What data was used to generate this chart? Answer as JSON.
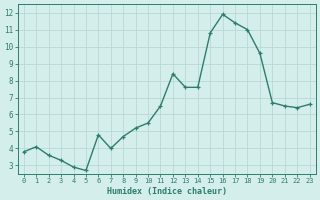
{
  "xlabel": "Humidex (Indice chaleur)",
  "ylabel": "",
  "x": [
    0,
    1,
    2,
    3,
    4,
    5,
    6,
    7,
    8,
    9,
    10,
    11,
    12,
    13,
    14,
    15,
    16,
    17,
    18,
    19,
    20,
    21,
    22,
    23
  ],
  "y": [
    3.8,
    4.1,
    3.6,
    3.3,
    2.9,
    2.7,
    4.8,
    4.0,
    4.7,
    5.2,
    5.5,
    6.5,
    8.4,
    7.6,
    7.6,
    10.8,
    11.9,
    11.4,
    11.0,
    9.6,
    6.7,
    6.5,
    6.4,
    6.6
  ],
  "line_color": "#2d7d6e",
  "marker": "+",
  "marker_size": 3.5,
  "line_width": 1.0,
  "bg_color": "#d4eeec",
  "grid_color": "#b8d8d6",
  "axis_color": "#2d7d6e",
  "tick_label_color": "#2d7d6e",
  "xlabel_color": "#2d7d6e",
  "ylim": [
    2.5,
    12.5
  ],
  "yticks": [
    3,
    4,
    5,
    6,
    7,
    8,
    9,
    10,
    11,
    12
  ],
  "xlim": [
    -0.5,
    23.5
  ],
  "xticks": [
    0,
    1,
    2,
    3,
    4,
    5,
    6,
    7,
    8,
    9,
    10,
    11,
    12,
    13,
    14,
    15,
    16,
    17,
    18,
    19,
    20,
    21,
    22,
    23
  ]
}
